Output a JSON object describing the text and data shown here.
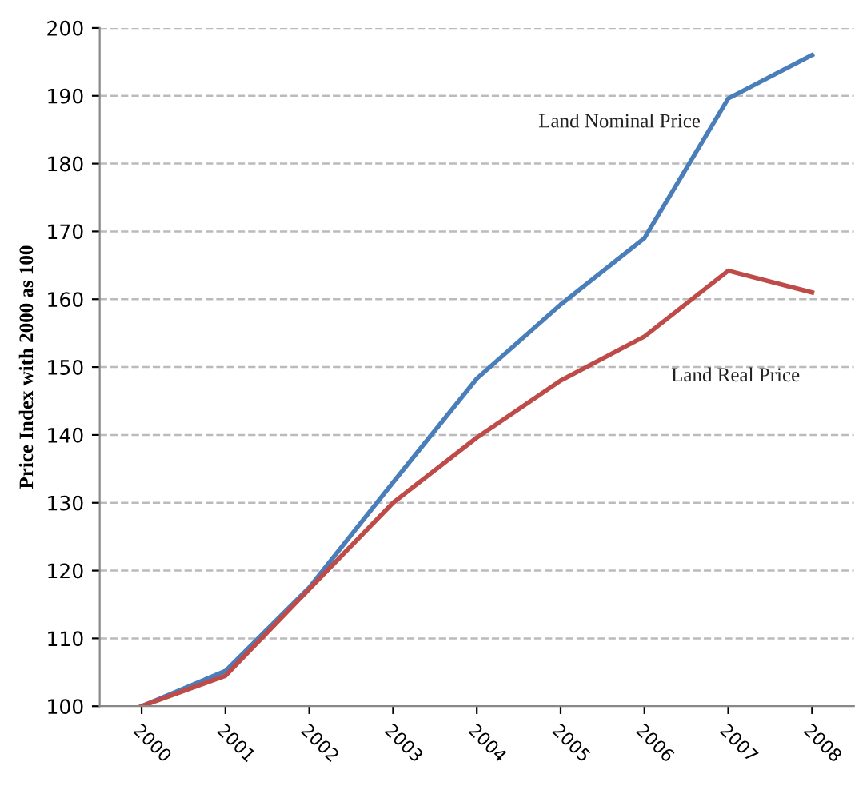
{
  "chart_data": {
    "type": "line",
    "ylabel": "Price Index with 2000 as 100",
    "categories": [
      "2000",
      "2001",
      "2002",
      "2003",
      "2004",
      "2005",
      "2006",
      "2007",
      "2008"
    ],
    "series": [
      {
        "name": "Land Nominal Price",
        "color": "#4a7ebb",
        "values": [
          100,
          105.2,
          117.5,
          133,
          148.3,
          159.2,
          169,
          189.6,
          196
        ]
      },
      {
        "name": "Land Real Price",
        "color": "#be4b48",
        "values": [
          100,
          104.5,
          117.3,
          130,
          139.6,
          148,
          154.5,
          164.2,
          161
        ]
      }
    ],
    "ylim": [
      100,
      200
    ],
    "yticks": [
      100,
      110,
      120,
      130,
      140,
      150,
      160,
      170,
      180,
      190,
      200
    ],
    "grid": "y",
    "legend": false,
    "marker": "none",
    "line_style": "solid"
  }
}
